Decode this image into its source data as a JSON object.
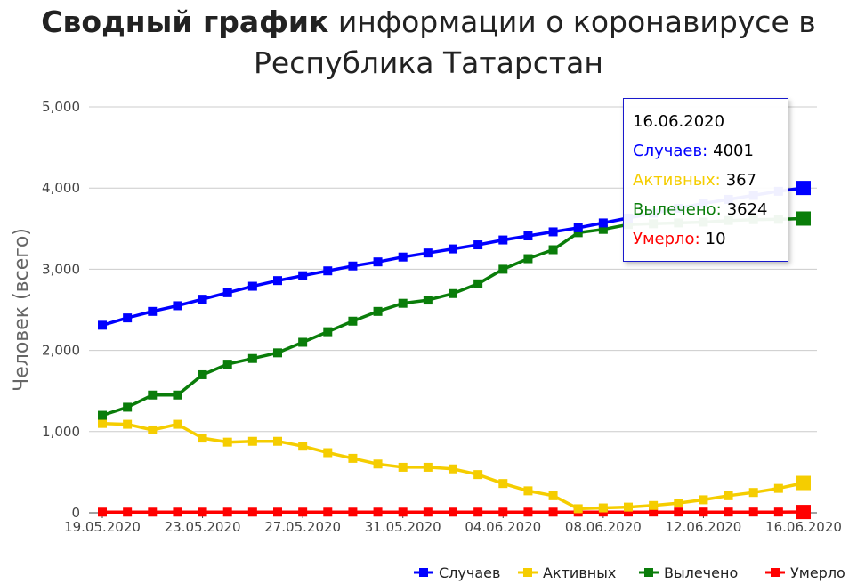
{
  "title": {
    "bold": "Сводный график",
    "rest": " информации о коронавирусе в",
    "line2": "Республика Татарстан"
  },
  "colors": {
    "cases": "#0000ff",
    "active": "#f5cd00",
    "recovered": "#0a7d0a",
    "died": "#ff0000",
    "grid": "#cccccc",
    "tooltip_border": "#1a1acc"
  },
  "tooltip": {
    "date": "16.06.2020",
    "cases_label": "Случаев:",
    "cases_value": "4001",
    "active_label": "Активных:",
    "active_value": "367",
    "recovered_label": "Вылечено:",
    "recovered_value": "3624",
    "died_label": "Умерло:",
    "died_value": "10"
  },
  "chart_data": {
    "type": "line",
    "title": "Сводный график информации о коронавирусе в Республика Татарстан",
    "ylabel": "Человек (всего)",
    "xlabel": "",
    "ylim": [
      0,
      5000
    ],
    "yticks": [
      "0",
      "1,000",
      "2,000",
      "3,000",
      "4,000",
      "5,000"
    ],
    "ytick_values": [
      0,
      1000,
      2000,
      3000,
      4000,
      5000
    ],
    "x_tick_labels": [
      "19.05.2020",
      "23.05.2020",
      "27.05.2020",
      "31.05.2020",
      "04.06.2020",
      "08.06.2020",
      "12.06.2020",
      "16.06.2020"
    ],
    "x_tick_index": [
      0,
      4,
      8,
      12,
      16,
      20,
      24,
      28
    ],
    "grid": true,
    "legend_position": "bottom-right",
    "x": [
      "19.05.2020",
      "20.05.2020",
      "21.05.2020",
      "22.05.2020",
      "23.05.2020",
      "24.05.2020",
      "25.05.2020",
      "26.05.2020",
      "27.05.2020",
      "28.05.2020",
      "29.05.2020",
      "30.05.2020",
      "31.05.2020",
      "01.06.2020",
      "02.06.2020",
      "03.06.2020",
      "04.06.2020",
      "05.06.2020",
      "06.06.2020",
      "07.06.2020",
      "08.06.2020",
      "09.06.2020",
      "10.06.2020",
      "11.06.2020",
      "12.06.2020",
      "13.06.2020",
      "14.06.2020",
      "15.06.2020",
      "16.06.2020"
    ],
    "series": [
      {
        "name": "Случаев",
        "color": "#0000ff",
        "values": [
          2310,
          2400,
          2480,
          2550,
          2630,
          2710,
          2790,
          2860,
          2920,
          2980,
          3040,
          3090,
          3150,
          3200,
          3250,
          3300,
          3360,
          3410,
          3460,
          3510,
          3570,
          3630,
          3690,
          3750,
          3810,
          3860,
          3910,
          3960,
          4001
        ]
      },
      {
        "name": "Активных",
        "color": "#f5cd00",
        "values": [
          1100,
          1090,
          1020,
          1090,
          920,
          870,
          880,
          880,
          820,
          740,
          670,
          600,
          560,
          560,
          540,
          470,
          360,
          270,
          210,
          50,
          60,
          70,
          90,
          120,
          160,
          210,
          250,
          300,
          367
        ]
      },
      {
        "name": "Вылечено",
        "color": "#0a7d0a",
        "values": [
          1200,
          1300,
          1450,
          1450,
          1700,
          1830,
          1900,
          1970,
          2100,
          2230,
          2360,
          2480,
          2580,
          2620,
          2700,
          2820,
          3000,
          3130,
          3240,
          3450,
          3490,
          3550,
          3560,
          3570,
          3580,
          3600,
          3610,
          3615,
          3624
        ]
      },
      {
        "name": "Умерло",
        "color": "#ff0000",
        "values": [
          8,
          8,
          8,
          8,
          8,
          8,
          8,
          8,
          8,
          8,
          8,
          8,
          8,
          8,
          8,
          8,
          8,
          8,
          8,
          8,
          9,
          9,
          9,
          9,
          9,
          9,
          9,
          9,
          10
        ]
      }
    ]
  }
}
